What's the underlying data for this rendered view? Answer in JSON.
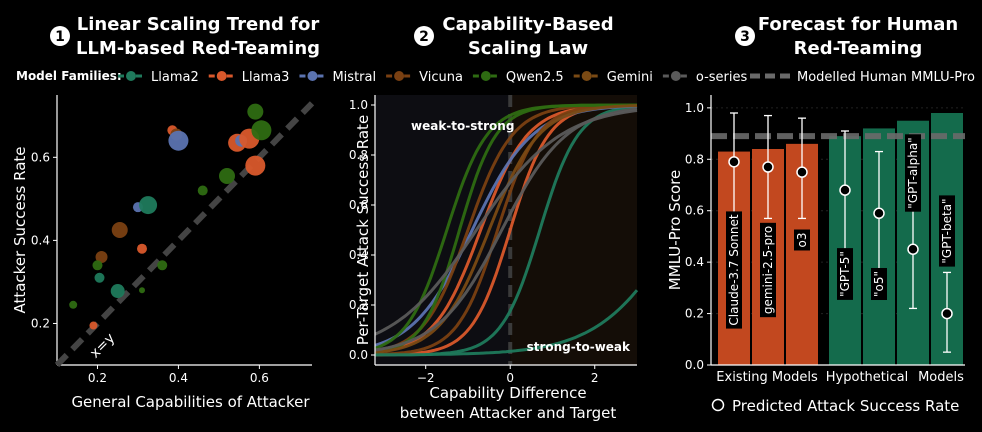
{
  "legend_title": "Model Families:",
  "colors": {
    "Llama2": "#1f7a5c",
    "Llama3": "#d9582b",
    "Mistral": "#5b73b0",
    "Vicuna": "#7a4012",
    "Qwen2.5": "#2e6b12",
    "Gemini": "#7a4a14",
    "o-series": "#5a5a5a",
    "existing_bar": "#c2481f",
    "hypo_bar": "#146b4c"
  },
  "chart_data": [
    {
      "type": "scatter",
      "badge": "1",
      "title_lines": [
        "Linear Scaling Trend for",
        "LLM-based Red-Teaming"
      ],
      "xlabel": "General Capabilities of Attacker",
      "ylabel": "Attacker Success Rate",
      "xlim": [
        0.1,
        0.73
      ],
      "ylim": [
        0.1,
        0.75
      ],
      "xticks": [
        "0.2",
        "0.4",
        "0.6"
      ],
      "yticks": [
        "0.2",
        "0.4",
        "0.6"
      ],
      "reference_line_label": "x=y",
      "legend_entries": [
        "Llama2",
        "Llama3",
        "Mistral",
        "Vicuna",
        "Qwen2.5",
        "Gemini",
        "o-series"
      ],
      "points": [
        {
          "family": "Qwen2.5",
          "x": 0.14,
          "y": 0.245,
          "size": 4
        },
        {
          "family": "Llama3",
          "x": 0.19,
          "y": 0.195,
          "size": 4
        },
        {
          "family": "Vicuna",
          "x": 0.21,
          "y": 0.36,
          "size": 6
        },
        {
          "family": "Qwen2.5",
          "x": 0.2,
          "y": 0.34,
          "size": 5
        },
        {
          "family": "Llama2",
          "x": 0.205,
          "y": 0.31,
          "size": 5
        },
        {
          "family": "Llama2",
          "x": 0.25,
          "y": 0.278,
          "size": 7
        },
        {
          "family": "Vicuna",
          "x": 0.255,
          "y": 0.425,
          "size": 8
        },
        {
          "family": "Llama3",
          "x": 0.31,
          "y": 0.38,
          "size": 5
        },
        {
          "family": "Qwen2.5",
          "x": 0.31,
          "y": 0.28,
          "size": 3
        },
        {
          "family": "Mistral",
          "x": 0.3,
          "y": 0.48,
          "size": 5
        },
        {
          "family": "Llama2",
          "x": 0.325,
          "y": 0.485,
          "size": 9
        },
        {
          "family": "Qwen2.5",
          "x": 0.36,
          "y": 0.34,
          "size": 5
        },
        {
          "family": "Llama3",
          "x": 0.385,
          "y": 0.665,
          "size": 5
        },
        {
          "family": "Vicuna",
          "x": 0.395,
          "y": 0.655,
          "size": 6
        },
        {
          "family": "Mistral",
          "x": 0.4,
          "y": 0.64,
          "size": 10
        },
        {
          "family": "Qwen2.5",
          "x": 0.46,
          "y": 0.52,
          "size": 5
        },
        {
          "family": "Qwen2.5",
          "x": 0.52,
          "y": 0.555,
          "size": 8
        },
        {
          "family": "Llama3",
          "x": 0.545,
          "y": 0.635,
          "size": 9
        },
        {
          "family": "Mistral",
          "x": 0.555,
          "y": 0.64,
          "size": 6
        },
        {
          "family": "Llama3",
          "x": 0.575,
          "y": 0.645,
          "size": 10
        },
        {
          "family": "Llama3",
          "x": 0.59,
          "y": 0.58,
          "size": 10
        },
        {
          "family": "Qwen2.5",
          "x": 0.59,
          "y": 0.71,
          "size": 8
        },
        {
          "family": "Qwen2.5",
          "x": 0.605,
          "y": 0.665,
          "size": 10
        }
      ]
    },
    {
      "type": "line",
      "badge": "2",
      "title_lines": [
        "Capability-Based",
        "Scaling Law"
      ],
      "xlabel_lines": [
        "Capability Difference",
        "between Attacker and Target"
      ],
      "ylabel": "Per-Target Attack  Success Rate",
      "xlim": [
        -3.2,
        3.0
      ],
      "ylim": [
        -0.04,
        1.04
      ],
      "xticks": [
        "−2",
        "0",
        "2"
      ],
      "yticks": [
        "0.0",
        "0.2",
        "0.4",
        "0.6",
        "0.8",
        "1.0"
      ],
      "annotations": [
        "weak-to-strong",
        "strong-to-weak"
      ],
      "series": [
        {
          "family": "Llama2",
          "values": [
            {
              "x0": 0.7,
              "k": 2.2
            }
          ]
        },
        {
          "family": "Llama3",
          "values": [
            {
              "x0": -0.7,
              "k": 1.8
            }
          ]
        },
        {
          "family": "Llama3",
          "values": [
            {
              "x0": 0.0,
              "k": 2.2
            }
          ]
        },
        {
          "family": "Mistral",
          "values": [
            {
              "x0": -0.9,
              "k": 1.4
            }
          ]
        },
        {
          "family": "Vicuna",
          "values": [
            {
              "x0": -1.0,
              "k": 1.9
            }
          ]
        },
        {
          "family": "Vicuna",
          "values": [
            {
              "x0": -0.3,
              "k": 2.1
            }
          ]
        },
        {
          "family": "Qwen2.5",
          "values": [
            {
              "x0": -1.5,
              "k": 2.1
            }
          ]
        },
        {
          "family": "Qwen2.5",
          "values": [
            {
              "x0": -1.2,
              "k": 2.3
            }
          ]
        },
        {
          "family": "Gemini",
          "values": [
            {
              "x0": -0.5,
              "k": 1.7
            }
          ]
        },
        {
          "family": "o-series",
          "values": [
            {
              "x0": -0.8,
              "k": 1.0
            }
          ]
        },
        {
          "family": "o-series",
          "values": [
            {
              "x0": -0.2,
              "k": 1.3
            }
          ]
        },
        {
          "family": "Llama2",
          "values": [
            {
              "x0": 4.0,
              "k": 1.05
            }
          ]
        }
      ]
    },
    {
      "type": "bar",
      "badge": "3",
      "title_lines": [
        "Forecast for Human",
        "Red-Teaming"
      ],
      "ylabel": "MMLU-Pro Score",
      "ylim": [
        0,
        1.05
      ],
      "yticks": [
        "0.0",
        "0.2",
        "0.4",
        "0.6",
        "0.8",
        "1.0"
      ],
      "reference_line": {
        "label": "Modelled Human MMLU-Pro",
        "value": 0.89
      },
      "group_labels": [
        "Existing Models",
        "Hypothetical",
        "Models"
      ],
      "marker_legend": "Predicted Attack Success Rate",
      "bars": [
        {
          "label": "Claude-3.7 Sonnet",
          "group": "existing",
          "value": 0.83,
          "point": 0.79,
          "err": [
            0.58,
            0.98
          ]
        },
        {
          "label": "gemini-2.5-pro",
          "group": "existing",
          "value": 0.84,
          "point": 0.77,
          "err": [
            0.57,
            0.97
          ]
        },
        {
          "label": "o3",
          "group": "existing",
          "value": 0.86,
          "point": 0.75,
          "err": [
            0.57,
            0.96
          ]
        },
        {
          "label": "\"GPT-5\"",
          "group": "hypothetical",
          "value": 0.89,
          "point": 0.68,
          "err": [
            0.45,
            0.91
          ]
        },
        {
          "label": "\"o5\"",
          "group": "hypothetical",
          "value": 0.92,
          "point": 0.59,
          "err": [
            0.35,
            0.83
          ]
        },
        {
          "label": "\"GPT-alpha\"",
          "group": "hypothetical",
          "value": 0.95,
          "point": 0.45,
          "err": [
            0.22,
            0.68
          ]
        },
        {
          "label": "\"GPT-beta\"",
          "group": "hypothetical",
          "value": 0.98,
          "point": 0.2,
          "err": [
            0.05,
            0.36
          ]
        }
      ]
    }
  ]
}
